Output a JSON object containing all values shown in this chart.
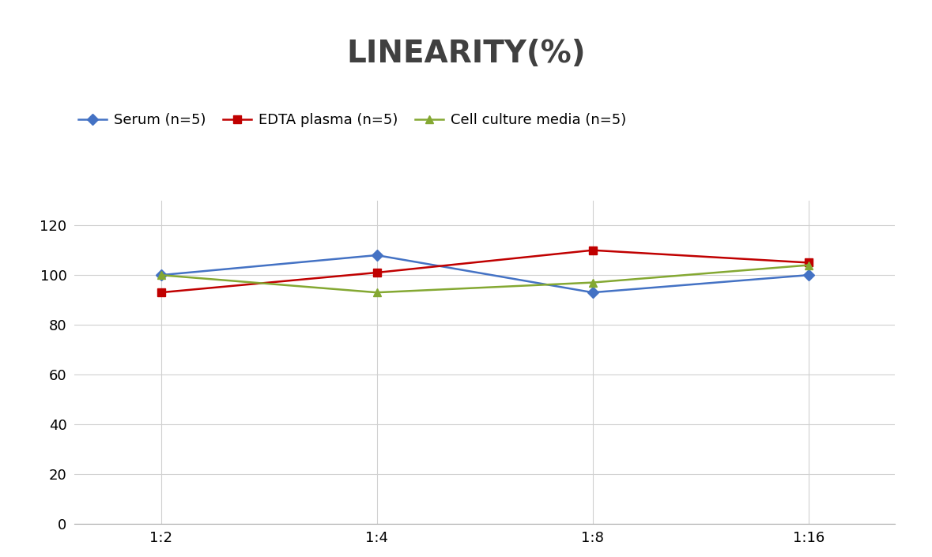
{
  "title": "LINEARITY(%)",
  "title_fontsize": 28,
  "title_fontweight": "bold",
  "title_color": "#404040",
  "x_labels": [
    "1:2",
    "1:4",
    "1:8",
    "1:16"
  ],
  "x_positions": [
    0,
    1,
    2,
    3
  ],
  "series": [
    {
      "label": "Serum (n=5)",
      "values": [
        100,
        108,
        93,
        100
      ],
      "color": "#4472C4",
      "marker": "D",
      "markersize": 7,
      "linewidth": 1.8
    },
    {
      "label": "EDTA plasma (n=5)",
      "values": [
        93,
        101,
        110,
        105
      ],
      "color": "#C00000",
      "marker": "s",
      "markersize": 7,
      "linewidth": 1.8
    },
    {
      "label": "Cell culture media (n=5)",
      "values": [
        100,
        93,
        97,
        104
      ],
      "color": "#84A832",
      "marker": "^",
      "markersize": 7,
      "linewidth": 1.8
    }
  ],
  "ylim": [
    0,
    130
  ],
  "yticks": [
    0,
    20,
    40,
    60,
    80,
    100,
    120
  ],
  "xlim": [
    -0.4,
    3.4
  ],
  "grid_color": "#D0D0D0",
  "background_color": "#FFFFFF",
  "legend_fontsize": 13,
  "tick_fontsize": 13
}
